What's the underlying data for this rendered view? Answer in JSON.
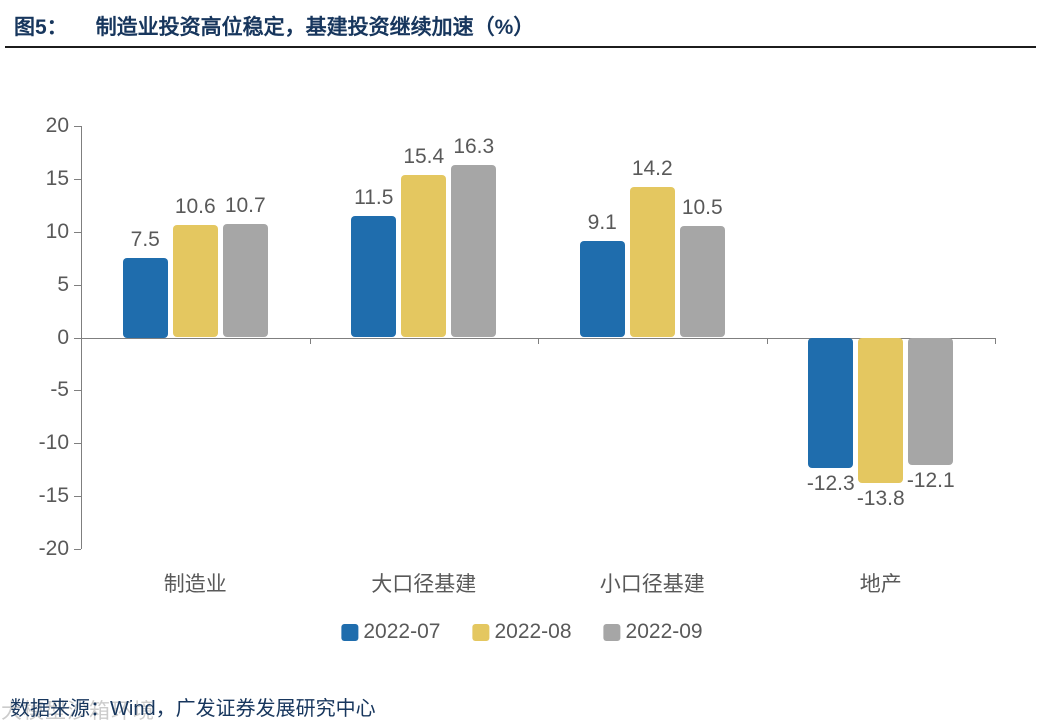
{
  "header": {
    "figure_label": "图5：",
    "title": "制造业投资高位稳定，基建投资继续加速（%）"
  },
  "chart_data": {
    "type": "bar",
    "title": "制造业投资高位稳定，基建投资继续加速（%）",
    "categories": [
      "制造业",
      "大口径基建",
      "小口径基建",
      "地产"
    ],
    "series": [
      {
        "name": "2022-07",
        "color": "#1F6DAD",
        "values": [
          7.5,
          11.5,
          9.1,
          -12.3
        ]
      },
      {
        "name": "2022-08",
        "color": "#E4C760",
        "values": [
          10.6,
          15.4,
          14.2,
          -13.8
        ]
      },
      {
        "name": "2022-09",
        "color": "#A6A6A6",
        "values": [
          10.7,
          16.3,
          10.5,
          -12.1
        ]
      }
    ],
    "ylim": [
      -20,
      20
    ],
    "yticks": [
      20,
      15,
      10,
      5,
      0,
      -5,
      -10,
      -15,
      -20
    ],
    "grid": false,
    "legend_position": "bottom",
    "value_labels": true,
    "unit": "%"
  },
  "footer": {
    "source": "数据来源：Wind，广发证券发展研究中心"
  },
  "watermark": {
    "text": "大模型沙箱环境"
  },
  "colors": {
    "title": "#17365D",
    "axis": "#7F7F7F",
    "label": "#595959"
  }
}
